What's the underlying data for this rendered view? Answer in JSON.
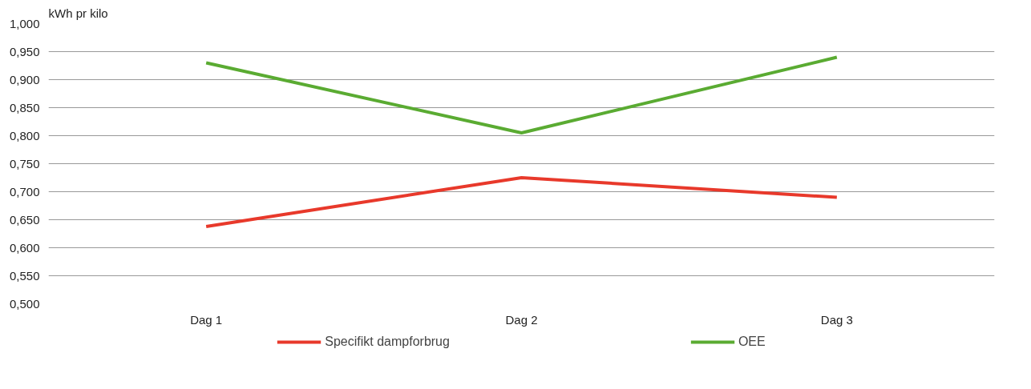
{
  "chart_data": {
    "type": "line",
    "ylabel": "kWh pr kilo",
    "categories": [
      "Dag 1",
      "Dag 2",
      "Dag 3"
    ],
    "series": [
      {
        "name": "Specifikt dampforbrug",
        "color": "#e8392b",
        "values": [
          0.638,
          0.725,
          0.69
        ]
      },
      {
        "name": "OEE",
        "color": "#5aab32",
        "values": [
          0.93,
          0.805,
          0.94
        ]
      }
    ],
    "ylim": [
      0.5,
      1.0
    ],
    "yticks": [
      {
        "value": 0.5,
        "label": "0,500"
      },
      {
        "value": 0.55,
        "label": "0,550"
      },
      {
        "value": 0.6,
        "label": "0,600"
      },
      {
        "value": 0.65,
        "label": "0,650"
      },
      {
        "value": 0.7,
        "label": "0,700"
      },
      {
        "value": 0.75,
        "label": "0,750"
      },
      {
        "value": 0.8,
        "label": "0,800"
      },
      {
        "value": 0.85,
        "label": "0,850"
      },
      {
        "value": 0.9,
        "label": "0,900"
      },
      {
        "value": 0.95,
        "label": "0,950"
      },
      {
        "value": 1.0,
        "label": "1,000"
      }
    ],
    "grid": "y",
    "legend": "bottom",
    "marker": "none",
    "line_style": "solid"
  }
}
